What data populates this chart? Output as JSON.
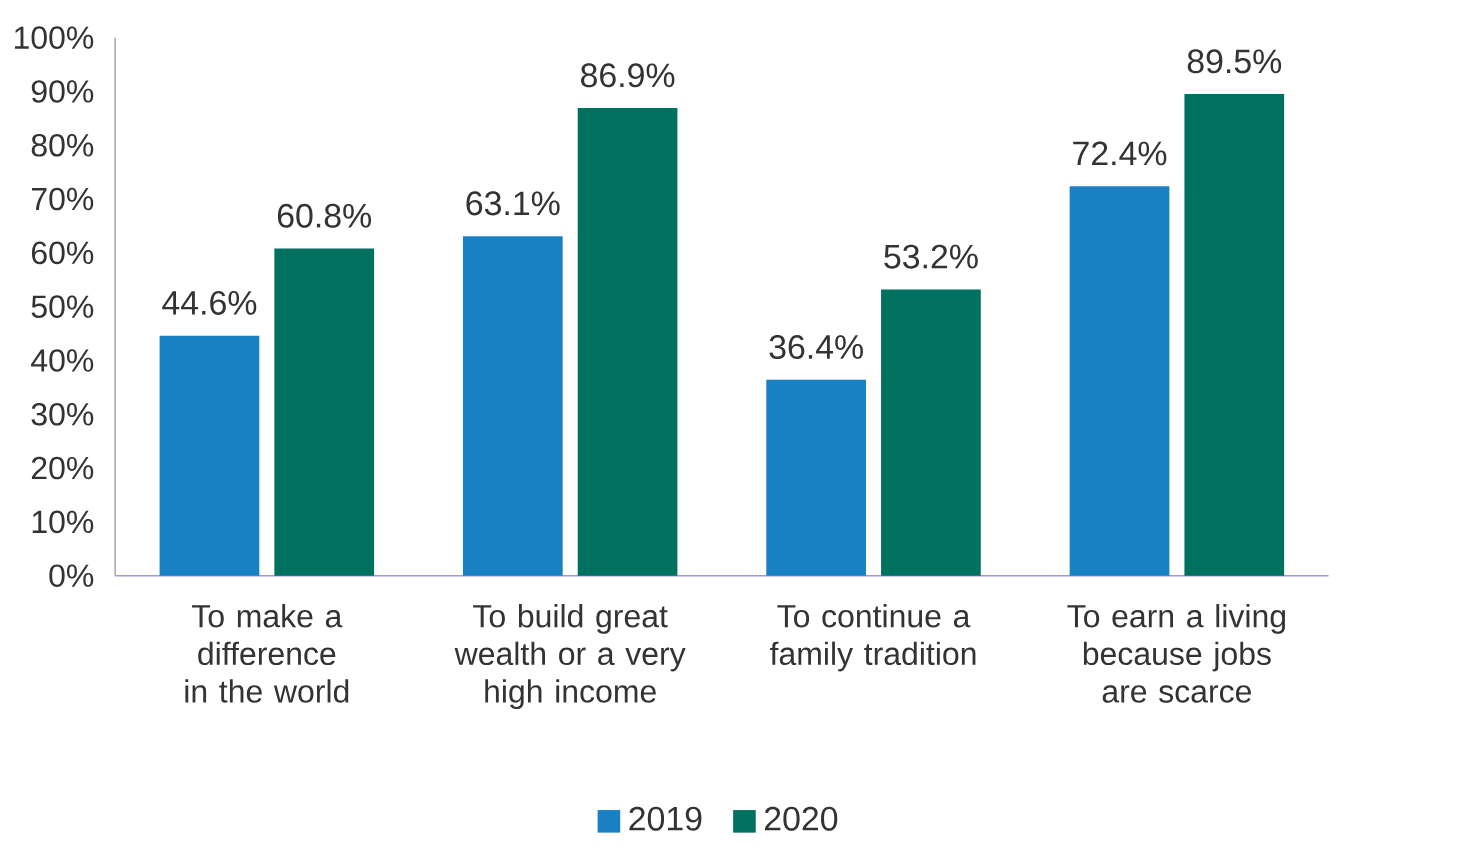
{
  "chart_data": {
    "type": "bar",
    "categories": [
      "To make a difference in the world",
      "To build great wealth or a very high income",
      "To continue a family tradition",
      "To earn a living because jobs are scarce"
    ],
    "series": [
      {
        "name": "2019",
        "color": "#1a80c4",
        "values": [
          44.6,
          63.1,
          36.4,
          72.4
        ],
        "value_labels": [
          "44.6%",
          "63.1%",
          "36.4%",
          "72.4%"
        ]
      },
      {
        "name": "2020",
        "color": "#00705f",
        "values": [
          60.8,
          86.9,
          53.2,
          89.5
        ],
        "value_labels": [
          "60.8%",
          "86.9%",
          "53.2%",
          "89.5%"
        ]
      }
    ],
    "ylim": [
      0,
      100
    ],
    "yticks": [
      {
        "value": 0,
        "label": "0%"
      },
      {
        "value": 10,
        "label": "10%"
      },
      {
        "value": 20,
        "label": "20%"
      },
      {
        "value": 30,
        "label": "30%"
      },
      {
        "value": 40,
        "label": "40%"
      },
      {
        "value": 50,
        "label": "50%"
      },
      {
        "value": 60,
        "label": "60%"
      },
      {
        "value": 70,
        "label": "70%"
      },
      {
        "value": 80,
        "label": "80%"
      },
      {
        "value": 90,
        "label": "90%"
      },
      {
        "value": 100,
        "label": "100%"
      }
    ],
    "legend": "bottom"
  }
}
